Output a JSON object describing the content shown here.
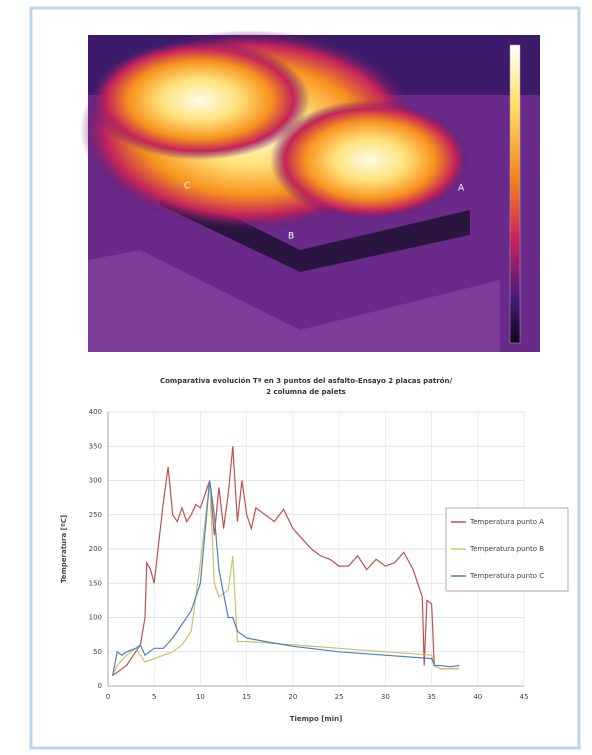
{
  "image_labels": [
    "C",
    "A",
    "B"
  ],
  "chart_data": {
    "type": "line",
    "title": [
      "Comparativa evolución Tª en 3 puntos del asfalto-Ensayo 2 placas patrón/",
      "2 columna de palets"
    ],
    "x_label": "Tiempo [min]",
    "y_label": "Temperatura [ºC]",
    "xlim": [
      0,
      45
    ],
    "xticks": [
      0,
      5,
      10,
      15,
      20,
      25,
      30,
      35,
      40,
      45
    ],
    "ylim": [
      0,
      400
    ],
    "yticks": [
      0,
      50,
      100,
      150,
      200,
      250,
      300,
      350,
      400
    ],
    "grid": true,
    "legend": "right",
    "series": [
      {
        "name": "Temperatura punto A",
        "color": "#c0504d",
        "x": [
          0.5,
          1,
          2,
          3,
          3.5,
          4,
          4.2,
          4.6,
          5,
          5.5,
          6,
          6.5,
          7,
          7.5,
          8,
          8.5,
          9,
          9.5,
          10,
          10.5,
          11,
          11.5,
          12,
          12.5,
          13,
          13.5,
          14,
          14.5,
          15,
          15.5,
          16,
          17,
          18,
          19,
          20,
          21,
          22,
          23,
          24,
          25,
          26,
          27,
          28,
          29,
          30,
          31,
          32,
          33,
          34,
          34.2,
          34.5,
          35,
          35.3,
          36,
          37,
          38
        ],
        "values": [
          15,
          20,
          30,
          50,
          60,
          100,
          180,
          170,
          150,
          210,
          270,
          320,
          250,
          240,
          260,
          240,
          250,
          265,
          260,
          280,
          300,
          220,
          290,
          230,
          280,
          350,
          240,
          300,
          250,
          230,
          260,
          250,
          240,
          258,
          230,
          215,
          200,
          190,
          185,
          175,
          175,
          190,
          170,
          185,
          175,
          180,
          195,
          170,
          130,
          30,
          125,
          120,
          30,
          25,
          25,
          25
        ]
      },
      {
        "name": "Temperatura punto B",
        "color": "#c9c46a",
        "x": [
          0.5,
          1,
          2,
          3,
          3.5,
          4,
          5,
          6,
          7,
          8,
          9,
          10,
          11,
          11.5,
          12,
          13,
          13.5,
          14,
          15,
          20,
          25,
          30,
          35,
          35.3,
          36,
          37,
          38
        ],
        "values": [
          15,
          30,
          45,
          55,
          45,
          35,
          40,
          45,
          50,
          60,
          80,
          180,
          300,
          150,
          130,
          140,
          190,
          65,
          65,
          60,
          55,
          50,
          45,
          30,
          25,
          25,
          25
        ]
      },
      {
        "name": "Temperatura punto C",
        "color": "#4f81bd",
        "x": [
          0.5,
          1,
          1.5,
          2,
          3,
          3.5,
          4,
          5,
          6,
          7,
          8,
          9,
          10,
          11,
          11.5,
          12,
          13,
          13.5,
          14,
          15,
          17,
          20,
          25,
          30,
          35,
          35.3,
          36,
          37,
          38
        ],
        "values": [
          15,
          50,
          45,
          50,
          55,
          60,
          45,
          55,
          55,
          70,
          90,
          110,
          150,
          300,
          250,
          170,
          100,
          100,
          80,
          70,
          65,
          58,
          50,
          45,
          40,
          30,
          30,
          28,
          30
        ]
      }
    ]
  }
}
